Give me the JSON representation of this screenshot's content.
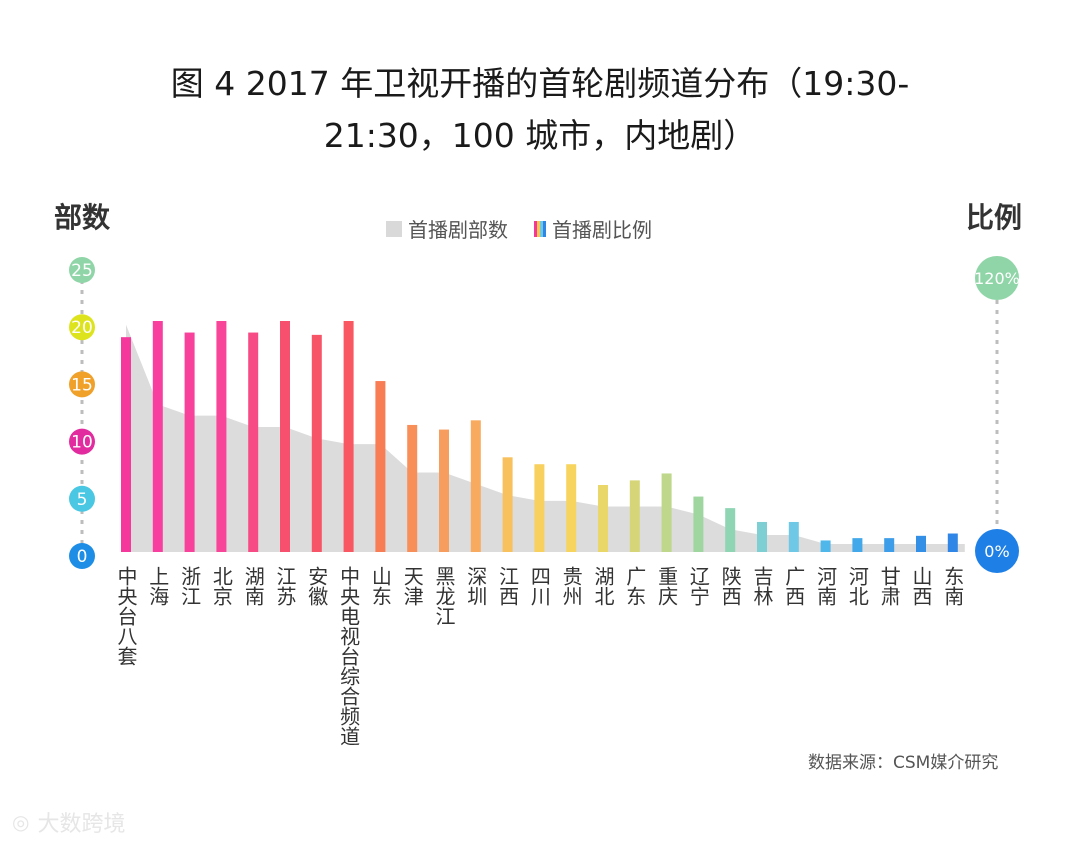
{
  "title_line1": "图 4 2017 年卫视开播的首轮剧频道分布（19:30-",
  "title_line2": "21:30，100 城市，内地剧）",
  "left_axis_title": "部数",
  "right_axis_title": "比例",
  "legend": {
    "area": "首播剧部数",
    "bar": "首播剧比例"
  },
  "source": "数据来源：CSM媒介研究",
  "watermark": "大数跨境",
  "chart_data": {
    "type": "bar",
    "categories": [
      "中央台八套",
      "上海",
      "浙江",
      "北京",
      "湖南",
      "江苏",
      "安徽",
      "中央电视台综合频道",
      "山东",
      "天津",
      "黑龙江",
      "深圳",
      "江西",
      "四川",
      "贵州",
      "湖北",
      "广东",
      "重庆",
      "辽宁",
      "陕西",
      "吉林",
      "广西",
      "河南",
      "河北",
      "甘肃",
      "山西",
      "东南"
    ],
    "series": [
      {
        "name": "首播剧部数",
        "kind": "area",
        "values": [
          20,
          13,
          12,
          12,
          11,
          11,
          10,
          9.5,
          9.5,
          7,
          7,
          6,
          5,
          4.5,
          4.5,
          4,
          4,
          4,
          3.3,
          2,
          1.5,
          1.5,
          0.7,
          0.7,
          0.7,
          0.7,
          0.7
        ]
      },
      {
        "name": "首播剧比例",
        "kind": "bar",
        "values": [
          93,
          100,
          95,
          100,
          95,
          100,
          94,
          100,
          74,
          55,
          53,
          57,
          41,
          38,
          38,
          29,
          31,
          34,
          24,
          19,
          13,
          13,
          5,
          6,
          6,
          7,
          8
        ]
      }
    ],
    "left_axis": {
      "ticks": [
        "0",
        "5",
        "10",
        "15",
        "20",
        "25"
      ],
      "range": [
        0,
        25
      ]
    },
    "right_axis": {
      "ticks": [
        "0%",
        "120%"
      ],
      "range": [
        0,
        120
      ]
    },
    "colors": {
      "bars": [
        "#f4389c",
        "#f83fa0",
        "#f8419a",
        "#f8459a",
        "#f74b85",
        "#f7506f",
        "#f75567",
        "#f95862",
        "#f87d55",
        "#f88f59",
        "#f79d5e",
        "#f8aa5f",
        "#f8c15e",
        "#f8d05e",
        "#f6d45e",
        "#e9d769",
        "#d6d678",
        "#bfd78a",
        "#9fd6a0",
        "#8fd5b4",
        "#7ecfd3",
        "#6ec8e6",
        "#4fb7ea",
        "#42a8ea",
        "#3d9de8",
        "#338fe6",
        "#2f86e6"
      ],
      "area": "#dcdcdc",
      "left_tick_circles": [
        "#1e8de6",
        "#4ac7e2",
        "#e12b9e",
        "#f0a12a",
        "#dde31c",
        "#8fd5a7"
      ],
      "right_top_circle": "#8fd5a7",
      "right_bottom_circle": "#1e7fe6"
    },
    "grid": false,
    "legend_position": "top-center"
  }
}
